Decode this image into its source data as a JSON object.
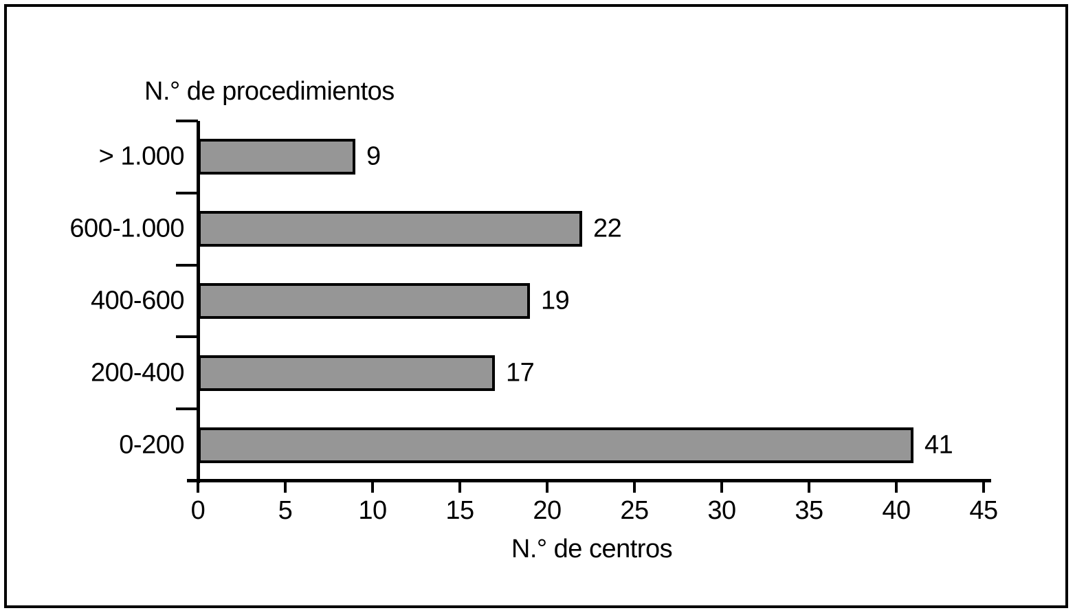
{
  "figure": {
    "title": "N.° de procedimientos",
    "x_axis_label": "N.° de centros"
  },
  "chart_data": {
    "type": "bar",
    "orientation": "horizontal",
    "title": "N.° de procedimientos",
    "xlabel": "N.° de centros",
    "ylabel": "N.° de procedimientos",
    "categories": [
      "> 1.000",
      "600-1.000",
      "400-600",
      "200-400",
      "0-200"
    ],
    "values": [
      9,
      22,
      19,
      17,
      41
    ],
    "value_labels": [
      "9",
      "22",
      "19",
      "17",
      "41"
    ],
    "xlim": [
      0,
      45
    ],
    "xticks": [
      0,
      5,
      10,
      15,
      20,
      25,
      30,
      35,
      40,
      45
    ],
    "xtick_labels": [
      "0",
      "5",
      "10",
      "15",
      "20",
      "25",
      "30",
      "35",
      "40",
      "45"
    ],
    "grid": false,
    "legend": "none",
    "bar_fill_color": "#969696",
    "bar_border_color": "#000000",
    "axis_color": "#000000",
    "text_color": "#000000",
    "frame_color": "#000000"
  }
}
